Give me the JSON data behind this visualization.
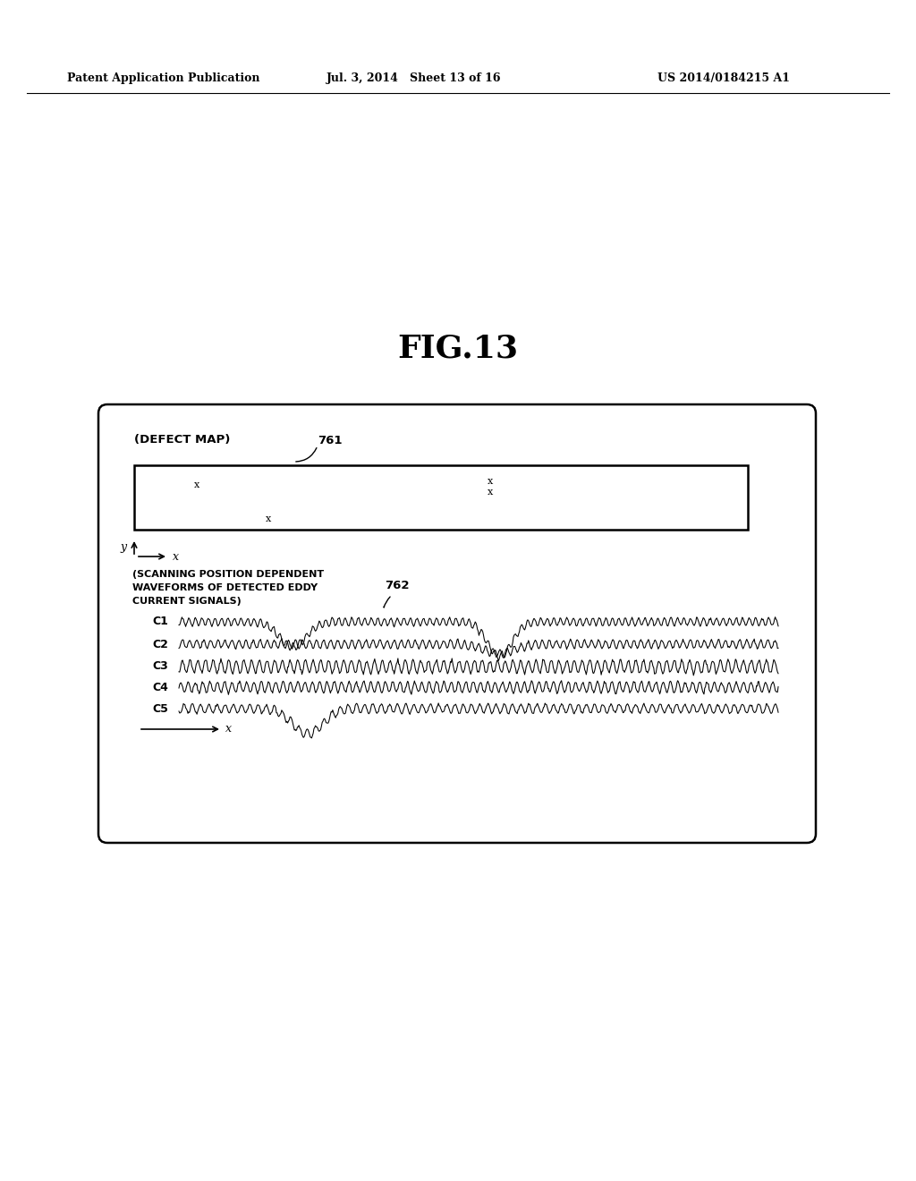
{
  "title": "FIG.13",
  "header_left": "Patent Application Publication",
  "header_center": "Jul. 3, 2014   Sheet 13 of 16",
  "header_right": "US 2014/0184215 A1",
  "defect_map_label": "(DEFECT MAP)",
  "scan_label_line1": "(SCANNING POSITION DEPENDENT",
  "scan_label_line2": "WAVEFORMS OF DETECTED EDDY",
  "scan_label_line3": "CURRENT SIGNALS)",
  "label_761": "761",
  "label_762": "762",
  "channel_labels": [
    "C1",
    "C2",
    "C3",
    "C4",
    "C5"
  ],
  "background_color": "#ffffff",
  "text_color": "#000000"
}
